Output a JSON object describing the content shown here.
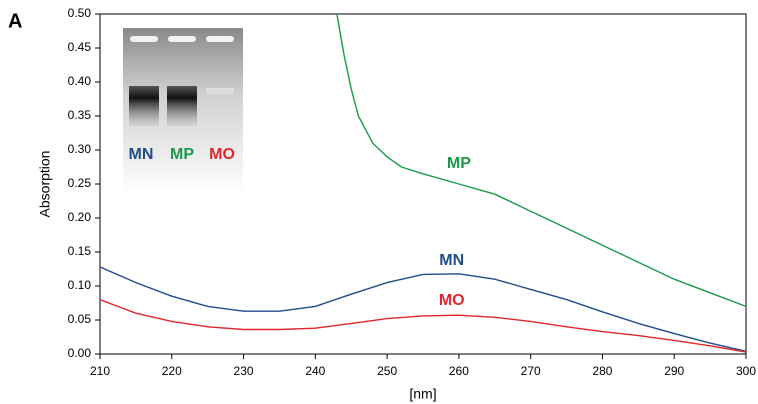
{
  "chart_data": {
    "type": "line",
    "panel_label": "A",
    "xlabel": "[nm]",
    "ylabel": "Absorption",
    "xlim": [
      210,
      300
    ],
    "ylim": [
      0,
      0.5
    ],
    "xticks": [
      210,
      220,
      230,
      240,
      250,
      260,
      270,
      280,
      290,
      300
    ],
    "yticks": [
      {
        "value": 0,
        "label": "0.00"
      },
      {
        "value": 0.05,
        "label": "0.05"
      },
      {
        "value": 0.1,
        "label": "0.10"
      },
      {
        "value": 0.15,
        "label": "0.15"
      },
      {
        "value": 0.2,
        "label": "0.20"
      },
      {
        "value": 0.25,
        "label": "0.25"
      },
      {
        "value": 0.3,
        "label": "0.30"
      },
      {
        "value": 0.35,
        "label": "0.35"
      },
      {
        "value": 0.4,
        "label": "0.40"
      },
      {
        "value": 0.45,
        "label": "0.45"
      },
      {
        "value": 0.5,
        "label": "0.50"
      }
    ],
    "series": [
      {
        "name": "MP",
        "color": "#1a9a4a",
        "x": [
          243,
          244,
          245,
          246,
          248,
          250,
          252,
          255,
          260,
          265,
          270,
          275,
          280,
          285,
          290,
          295,
          300
        ],
        "values": [
          0.5,
          0.44,
          0.39,
          0.35,
          0.31,
          0.29,
          0.275,
          0.265,
          0.25,
          0.235,
          0.21,
          0.185,
          0.16,
          0.135,
          0.11,
          0.09,
          0.07
        ]
      },
      {
        "name": "MN",
        "color": "#1f4e8c",
        "x": [
          210,
          215,
          220,
          225,
          230,
          235,
          240,
          245,
          250,
          255,
          260,
          265,
          270,
          275,
          280,
          285,
          290,
          295,
          300
        ],
        "values": [
          0.128,
          0.105,
          0.085,
          0.07,
          0.063,
          0.063,
          0.07,
          0.088,
          0.105,
          0.117,
          0.118,
          0.11,
          0.095,
          0.08,
          0.062,
          0.045,
          0.03,
          0.016,
          0.004
        ]
      },
      {
        "name": "MO",
        "color": "#e0262b",
        "x": [
          210,
          215,
          220,
          225,
          230,
          235,
          240,
          245,
          250,
          255,
          260,
          265,
          270,
          275,
          280,
          285,
          290,
          295,
          300
        ],
        "values": [
          0.08,
          0.06,
          0.048,
          0.04,
          0.036,
          0.036,
          0.038,
          0.045,
          0.052,
          0.056,
          0.057,
          0.054,
          0.048,
          0.04,
          0.033,
          0.027,
          0.02,
          0.012,
          0.003
        ]
      }
    ],
    "inset_labels": [
      "MN",
      "MP",
      "MO"
    ]
  }
}
